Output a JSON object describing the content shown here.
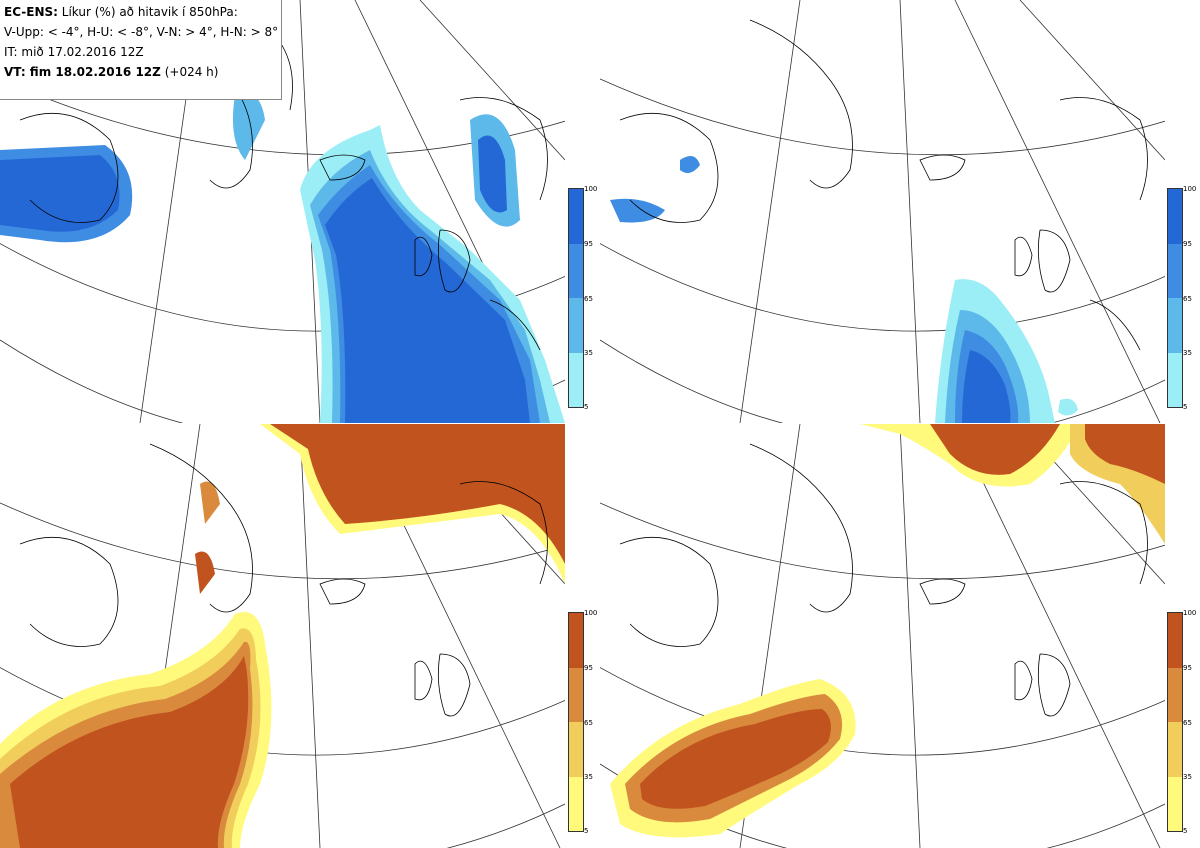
{
  "header": {
    "model": "EC-ENS:",
    "title": "Líkur (%) að hitavik í 850hPa:",
    "categories": "V-Upp: < -4°, H-U: < -8°, V-N: > 4°, H-N: > 8°",
    "init_time": "IT: mið 17.02.2016 12Z",
    "valid_label": "VT: fim 18.02.2016 12Z",
    "lead": "(+024 h)"
  },
  "colorbar": {
    "ticks": [
      "100",
      "95",
      "65",
      "35",
      "5"
    ],
    "cold_colors": [
      "#2468d6",
      "#3f8de2",
      "#5cb9ea",
      "#9beef6"
    ],
    "warm_colors": [
      "#c0531e",
      "#d98a3c",
      "#f1cd5c",
      "#fff97c"
    ]
  },
  "panels": [
    {
      "id": "upper-left",
      "label": "V-Upp"
    },
    {
      "id": "upper-right",
      "label": "H-U"
    },
    {
      "id": "lower-left",
      "label": "V-N"
    },
    {
      "id": "lower-right",
      "label": "H-N"
    }
  ]
}
